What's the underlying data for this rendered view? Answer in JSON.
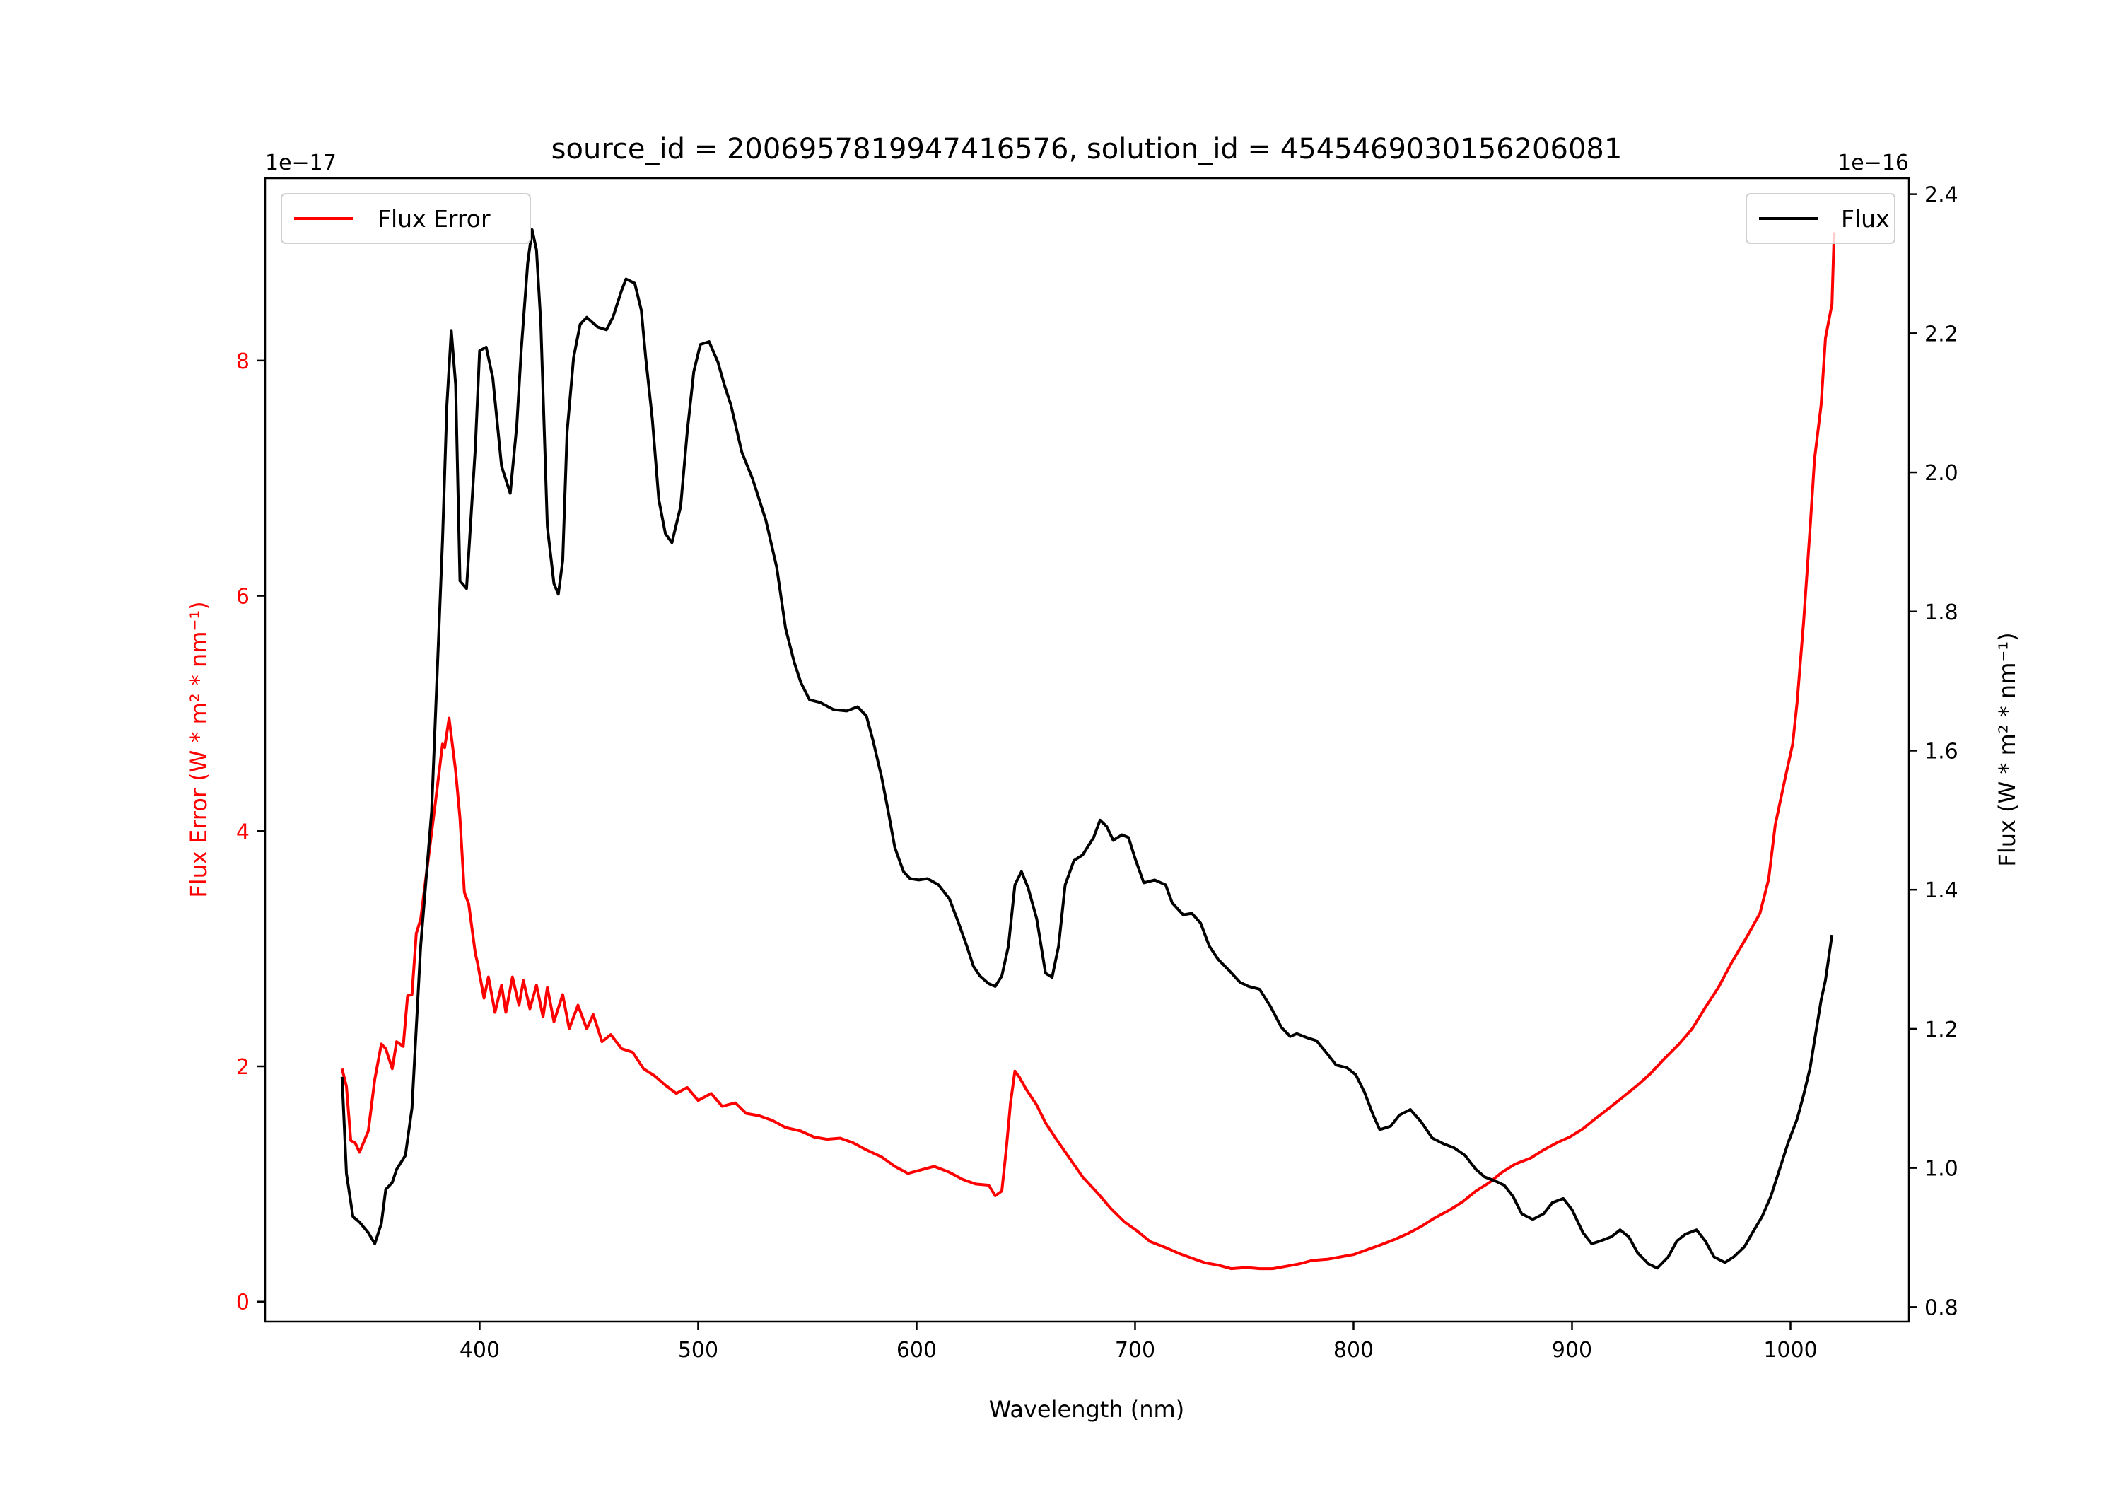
{
  "chart_data": {
    "type": "line",
    "title": "source_id = 2006957819947416576, solution_id = 4545469030156206081",
    "xlabel": "Wavelength (nm)",
    "ylabel_left": "Flux Error (W * m² * nm⁻¹)",
    "ylabel_right": "Flux (W * m² * nm⁻¹)",
    "offset_left": "1e−17",
    "offset_right": "1e−16",
    "xlim": [
      301.8,
      1054.2
    ],
    "ylim_left": [
      -0.17,
      9.55
    ],
    "ylim_right": [
      0.779,
      2.423
    ],
    "xticks": [
      400,
      500,
      600,
      700,
      800,
      900,
      1000
    ],
    "yticks_left": [
      0,
      2,
      4,
      6,
      8
    ],
    "yticks_right": [
      "0.8",
      "1.0",
      "1.2",
      "1.4",
      "1.6",
      "1.8",
      "2.0",
      "2.2",
      "2.4"
    ],
    "grid": false,
    "colors": {
      "flux_error": "#ff0000",
      "flux": "#000000"
    },
    "legends": [
      {
        "label": "Flux Error",
        "placement": "upper-left",
        "color": "#ff0000"
      },
      {
        "label": "Flux",
        "placement": "upper-right",
        "color": "#000000"
      }
    ],
    "series": [
      {
        "name": "Flux Error",
        "axis": "left",
        "unit_scale": "1e-17",
        "x": [
          337,
          339,
          341,
          343,
          345,
          349,
          352,
          355,
          357,
          360,
          362,
          365,
          367,
          369,
          371,
          373,
          377,
          380,
          383,
          384,
          386,
          389,
          391,
          393,
          395,
          398,
          399,
          402,
          404,
          407,
          410,
          412,
          415,
          418,
          420,
          423,
          426,
          429,
          431,
          434,
          438,
          441,
          445,
          449,
          452,
          456,
          460,
          465,
          470,
          475,
          480,
          485,
          490,
          495,
          500,
          506,
          511,
          517,
          522,
          528,
          534,
          540,
          547,
          553,
          559,
          565,
          571,
          577,
          584,
          590,
          596,
          602,
          608,
          615,
          621,
          627,
          633,
          636,
          639,
          641,
          643,
          645,
          647,
          650,
          655,
          659,
          664,
          670,
          676,
          683,
          689,
          695,
          701,
          707,
          714,
          720,
          726,
          732,
          738,
          744,
          751,
          757,
          763,
          769,
          775,
          781,
          788,
          794,
          800,
          806,
          812,
          819,
          825,
          831,
          837,
          844,
          850,
          856,
          862,
          868,
          874,
          881,
          887,
          893,
          899,
          905,
          911,
          918,
          924,
          930,
          936,
          942,
          949,
          955,
          961,
          967,
          973,
          980,
          986,
          990,
          993,
          997,
          1001,
          1003,
          1006,
          1009,
          1011,
          1014,
          1016,
          1019,
          1020
        ],
        "y": [
          1.98,
          1.83,
          1.37,
          1.35,
          1.27,
          1.45,
          1.89,
          2.19,
          2.15,
          1.98,
          2.21,
          2.17,
          2.6,
          2.61,
          3.13,
          3.25,
          3.84,
          4.28,
          4.74,
          4.71,
          4.96,
          4.51,
          4.11,
          3.48,
          3.38,
          2.96,
          2.88,
          2.58,
          2.76,
          2.46,
          2.69,
          2.46,
          2.76,
          2.52,
          2.73,
          2.49,
          2.69,
          2.42,
          2.67,
          2.38,
          2.61,
          2.32,
          2.52,
          2.32,
          2.44,
          2.21,
          2.27,
          2.15,
          2.12,
          1.98,
          1.92,
          1.84,
          1.77,
          1.82,
          1.71,
          1.77,
          1.66,
          1.69,
          1.6,
          1.58,
          1.54,
          1.48,
          1.45,
          1.4,
          1.38,
          1.39,
          1.35,
          1.29,
          1.23,
          1.15,
          1.09,
          1.12,
          1.15,
          1.1,
          1.04,
          1.0,
          0.99,
          0.9,
          0.94,
          1.29,
          1.69,
          1.96,
          1.91,
          1.81,
          1.67,
          1.52,
          1.38,
          1.22,
          1.06,
          0.92,
          0.79,
          0.68,
          0.6,
          0.51,
          0.46,
          0.41,
          0.37,
          0.33,
          0.31,
          0.28,
          0.29,
          0.28,
          0.28,
          0.3,
          0.32,
          0.35,
          0.36,
          0.38,
          0.4,
          0.44,
          0.48,
          0.53,
          0.58,
          0.64,
          0.71,
          0.78,
          0.85,
          0.94,
          1.01,
          1.1,
          1.17,
          1.22,
          1.29,
          1.35,
          1.4,
          1.47,
          1.56,
          1.66,
          1.75,
          1.84,
          1.94,
          2.06,
          2.19,
          2.32,
          2.5,
          2.67,
          2.88,
          3.1,
          3.3,
          3.59,
          4.05,
          4.4,
          4.74,
          5.09,
          5.78,
          6.58,
          7.16,
          7.62,
          8.19,
          8.48,
          9.09
        ]
      },
      {
        "name": "Flux",
        "axis": "right",
        "unit_scale": "1e-16",
        "x": [
          337,
          339,
          342,
          345,
          349,
          352,
          355,
          357,
          360,
          362,
          366,
          369,
          373,
          378,
          383,
          385,
          387,
          389,
          391,
          394,
          398,
          400,
          403,
          406,
          410,
          414,
          417,
          419,
          422,
          424,
          426,
          428,
          431,
          434,
          436,
          438,
          440,
          443,
          446,
          449,
          454,
          458,
          461,
          465,
          467,
          471,
          474,
          476,
          479,
          482,
          485,
          488,
          492,
          495,
          498,
          501,
          505,
          509,
          512,
          515,
          520,
          525,
          531,
          536,
          540,
          544,
          547,
          551,
          556,
          562,
          568,
          573,
          577,
          580,
          584,
          587,
          590,
          594,
          597,
          601,
          605,
          610,
          615,
          619,
          623,
          626,
          629,
          633,
          636,
          639,
          642,
          645,
          648,
          651,
          655,
          659,
          662,
          665,
          668,
          672,
          676,
          681,
          684,
          687,
          690,
          694,
          697,
          700,
          704,
          709,
          714,
          717,
          722,
          726,
          730,
          734,
          738,
          743,
          748,
          752,
          757,
          762,
          767,
          771,
          774,
          779,
          783,
          788,
          792,
          797,
          801,
          805,
          809,
          812,
          817,
          821,
          826,
          831,
          836,
          841,
          846,
          851,
          856,
          860,
          865,
          869,
          873,
          877,
          882,
          887,
          891,
          896,
          900,
          905,
          909,
          913,
          918,
          922,
          926,
          930,
          935,
          939,
          944,
          948,
          952,
          957,
          961,
          965,
          970,
          974,
          979,
          983,
          987,
          991,
          995,
          999,
          1003,
          1006,
          1009,
          1011,
          1014,
          1016,
          1019
        ],
        "y": [
          1.131,
          0.992,
          0.93,
          0.922,
          0.907,
          0.891,
          0.92,
          0.969,
          0.979,
          0.998,
          1.018,
          1.086,
          1.319,
          1.513,
          1.902,
          2.097,
          2.204,
          2.126,
          1.844,
          1.833,
          2.035,
          2.175,
          2.18,
          2.136,
          2.009,
          1.97,
          2.068,
          2.175,
          2.301,
          2.349,
          2.32,
          2.213,
          1.922,
          1.84,
          1.825,
          1.873,
          2.058,
          2.165,
          2.213,
          2.223,
          2.209,
          2.205,
          2.223,
          2.262,
          2.278,
          2.272,
          2.233,
          2.165,
          2.077,
          1.961,
          1.912,
          1.899,
          1.951,
          2.058,
          2.145,
          2.184,
          2.188,
          2.159,
          2.126,
          2.097,
          2.029,
          1.99,
          1.931,
          1.863,
          1.776,
          1.727,
          1.698,
          1.673,
          1.669,
          1.659,
          1.657,
          1.663,
          1.65,
          1.615,
          1.562,
          1.513,
          1.461,
          1.426,
          1.416,
          1.414,
          1.416,
          1.407,
          1.387,
          1.354,
          1.319,
          1.29,
          1.276,
          1.265,
          1.261,
          1.276,
          1.319,
          1.407,
          1.426,
          1.403,
          1.358,
          1.28,
          1.274,
          1.319,
          1.407,
          1.442,
          1.45,
          1.475,
          1.5,
          1.491,
          1.471,
          1.479,
          1.475,
          1.445,
          1.41,
          1.414,
          1.407,
          1.381,
          1.364,
          1.366,
          1.352,
          1.319,
          1.3,
          1.284,
          1.267,
          1.261,
          1.257,
          1.232,
          1.202,
          1.189,
          1.193,
          1.187,
          1.183,
          1.164,
          1.148,
          1.144,
          1.134,
          1.109,
          1.076,
          1.055,
          1.06,
          1.076,
          1.084,
          1.066,
          1.043,
          1.035,
          1.029,
          1.018,
          0.998,
          0.987,
          0.981,
          0.975,
          0.959,
          0.934,
          0.926,
          0.934,
          0.95,
          0.956,
          0.94,
          0.907,
          0.891,
          0.895,
          0.901,
          0.911,
          0.901,
          0.878,
          0.862,
          0.856,
          0.872,
          0.895,
          0.905,
          0.911,
          0.895,
          0.872,
          0.864,
          0.872,
          0.887,
          0.909,
          0.93,
          0.959,
          0.998,
          1.037,
          1.07,
          1.105,
          1.144,
          1.183,
          1.241,
          1.27,
          1.335
        ]
      }
    ]
  }
}
